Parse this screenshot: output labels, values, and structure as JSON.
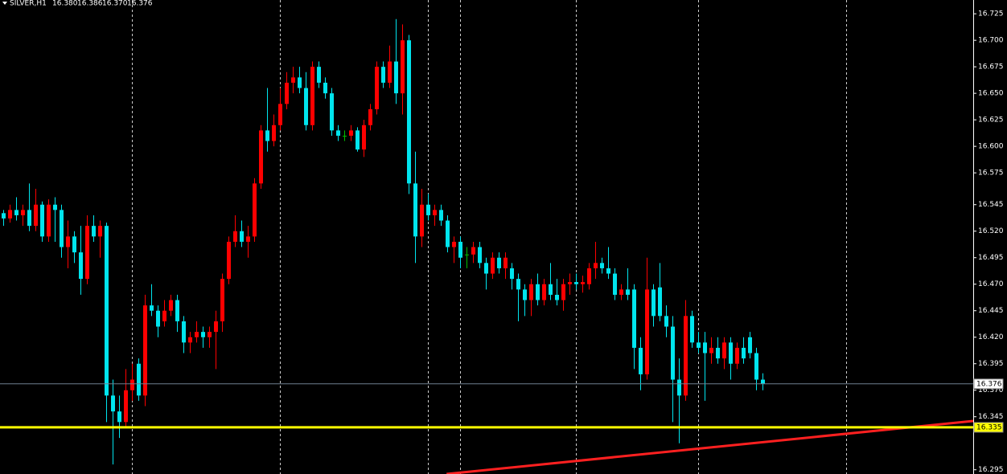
{
  "header": {
    "symbol": "SILVER,H1",
    "open": "16.380",
    "high": "16.386",
    "low": "16.370",
    "close": "16.376"
  },
  "chart_data": {
    "type": "candlestick",
    "up_color": "#ff0000",
    "down_color": "#00e5ee",
    "doji_color": "#00c000",
    "ylim": [
      16.291,
      16.738
    ],
    "yticks": [
      {
        "value": 16.725,
        "label": "16.725"
      },
      {
        "value": 16.7,
        "label": "16.700"
      },
      {
        "value": 16.675,
        "label": "16.675"
      },
      {
        "value": 16.65,
        "label": "16.650"
      },
      {
        "value": 16.625,
        "label": "16.625"
      },
      {
        "value": 16.6,
        "label": "16.600"
      },
      {
        "value": 16.575,
        "label": "16.575"
      },
      {
        "value": 16.545,
        "label": "16.545"
      },
      {
        "value": 16.52,
        "label": "16.520"
      },
      {
        "value": 16.495,
        "label": "16.495"
      },
      {
        "value": 16.47,
        "label": "16.470"
      },
      {
        "value": 16.445,
        "label": "16.445"
      },
      {
        "value": 16.42,
        "label": "16.420"
      },
      {
        "value": 16.395,
        "label": "16.395"
      },
      {
        "value": 16.37,
        "label": "16.370"
      },
      {
        "value": 16.345,
        "label": "16.345"
      },
      {
        "value": 16.295,
        "label": "16.295"
      }
    ],
    "separators": [
      20,
      43,
      66,
      71,
      89,
      108,
      131
    ],
    "hlines": [
      {
        "value": 16.376,
        "color": "#6f8090"
      },
      {
        "value": 16.335,
        "color": "#ffff00"
      }
    ],
    "trendline": {
      "color": "#ff2020",
      "from": [
        68.9,
        16.291
      ],
      "to": [
        150.75,
        16.341
      ]
    },
    "ohlc": [
      [
        16.537,
        16.54,
        16.525,
        16.532
      ],
      [
        16.532,
        16.545,
        16.528,
        16.54
      ],
      [
        16.54,
        16.552,
        16.53,
        16.535
      ],
      [
        16.535,
        16.545,
        16.525,
        16.54
      ],
      [
        16.54,
        16.565,
        16.52,
        16.525
      ],
      [
        16.525,
        16.56,
        16.52,
        16.545
      ],
      [
        16.545,
        16.548,
        16.51,
        16.515
      ],
      [
        16.515,
        16.55,
        16.51,
        16.545
      ],
      [
        16.545,
        16.552,
        16.51,
        16.54
      ],
      [
        16.54,
        16.545,
        16.495,
        16.505
      ],
      [
        16.505,
        16.53,
        16.485,
        16.515
      ],
      [
        16.515,
        16.52,
        16.49,
        16.5
      ],
      [
        16.5,
        16.525,
        16.46,
        16.475
      ],
      [
        16.475,
        16.535,
        16.47,
        16.525
      ],
      [
        16.525,
        16.535,
        16.51,
        16.515
      ],
      [
        16.515,
        16.53,
        16.495,
        16.525
      ],
      [
        16.525,
        16.528,
        16.34,
        16.365
      ],
      [
        16.365,
        16.38,
        16.3,
        16.35
      ],
      [
        16.35,
        16.365,
        16.325,
        16.34
      ],
      [
        16.34,
        16.39,
        16.335,
        16.37
      ],
      [
        16.37,
        16.395,
        16.36,
        16.38
      ],
      [
        16.395,
        16.4,
        16.36,
        16.365
      ],
      [
        16.365,
        16.46,
        16.355,
        16.45
      ],
      [
        16.45,
        16.47,
        16.44,
        16.445
      ],
      [
        16.445,
        16.45,
        16.42,
        16.43
      ],
      [
        16.435,
        16.455,
        16.43,
        16.445
      ],
      [
        16.445,
        16.46,
        16.44,
        16.455
      ],
      [
        16.455,
        16.46,
        16.425,
        16.435
      ],
      [
        16.435,
        16.44,
        16.405,
        16.415
      ],
      [
        16.415,
        16.425,
        16.405,
        16.42
      ],
      [
        16.42,
        16.435,
        16.415,
        16.425
      ],
      [
        16.425,
        16.43,
        16.41,
        16.42
      ],
      [
        16.42,
        16.43,
        16.41,
        16.425
      ],
      [
        16.425,
        16.445,
        16.39,
        16.435
      ],
      [
        16.435,
        16.48,
        16.425,
        16.475
      ],
      [
        16.475,
        16.515,
        16.47,
        16.51
      ],
      [
        16.51,
        16.535,
        16.505,
        16.52
      ],
      [
        16.52,
        16.53,
        16.505,
        16.51
      ],
      [
        16.51,
        16.525,
        16.495,
        16.515
      ],
      [
        16.515,
        16.57,
        16.51,
        16.565
      ],
      [
        16.565,
        16.62,
        16.56,
        16.615
      ],
      [
        16.615,
        16.655,
        16.595,
        16.605
      ],
      [
        16.605,
        16.63,
        16.6,
        16.62
      ],
      [
        16.62,
        16.655,
        16.615,
        16.64
      ],
      [
        16.64,
        16.67,
        16.635,
        16.66
      ],
      [
        16.66,
        16.675,
        16.65,
        16.665
      ],
      [
        16.665,
        16.675,
        16.65,
        16.655
      ],
      [
        16.655,
        16.67,
        16.615,
        16.62
      ],
      [
        16.62,
        16.68,
        16.615,
        16.675
      ],
      [
        16.675,
        16.68,
        16.655,
        16.66
      ],
      [
        16.66,
        16.665,
        16.645,
        16.65
      ],
      [
        16.65,
        16.655,
        16.61,
        16.615
      ],
      [
        16.615,
        16.62,
        16.605,
        16.61
      ],
      [
        16.61,
        16.615,
        16.605,
        16.61
      ],
      [
        16.61,
        16.62,
        16.605,
        16.615
      ],
      [
        16.615,
        16.618,
        16.595,
        16.597
      ],
      [
        16.597,
        16.625,
        16.59,
        16.62
      ],
      [
        16.62,
        16.64,
        16.615,
        16.635
      ],
      [
        16.635,
        16.68,
        16.63,
        16.675
      ],
      [
        16.675,
        16.68,
        16.655,
        16.66
      ],
      [
        16.66,
        16.695,
        16.655,
        16.68
      ],
      [
        16.68,
        16.72,
        16.64,
        16.65
      ],
      [
        16.65,
        16.715,
        16.63,
        16.7
      ],
      [
        16.7,
        16.705,
        16.555,
        16.565
      ],
      [
        16.565,
        16.595,
        16.49,
        16.515
      ],
      [
        16.515,
        16.56,
        16.505,
        16.545
      ],
      [
        16.545,
        16.555,
        16.53,
        16.535
      ],
      [
        16.535,
        16.545,
        16.525,
        16.54
      ],
      [
        16.54,
        16.545,
        16.525,
        16.53
      ],
      [
        16.53,
        16.535,
        16.5,
        16.505
      ],
      [
        16.505,
        16.515,
        16.49,
        16.51
      ],
      [
        16.51,
        16.515,
        16.485,
        16.495
      ],
      [
        16.498,
        16.505,
        16.485,
        16.498
      ],
      [
        16.498,
        16.51,
        16.49,
        16.505
      ],
      [
        16.505,
        16.51,
        16.485,
        16.49
      ],
      [
        16.49,
        16.495,
        16.465,
        16.48
      ],
      [
        16.48,
        16.5,
        16.475,
        16.495
      ],
      [
        16.495,
        16.5,
        16.48,
        16.485
      ],
      [
        16.485,
        16.5,
        16.475,
        16.495
      ],
      [
        16.485,
        16.49,
        16.465,
        16.475
      ],
      [
        16.475,
        16.48,
        16.435,
        16.465
      ],
      [
        16.465,
        16.47,
        16.44,
        16.455
      ],
      [
        16.455,
        16.475,
        16.44,
        16.47
      ],
      [
        16.47,
        16.48,
        16.45,
        16.455
      ],
      [
        16.455,
        16.475,
        16.45,
        16.47
      ],
      [
        16.47,
        16.49,
        16.455,
        16.46
      ],
      [
        16.46,
        16.475,
        16.45,
        16.455
      ],
      [
        16.455,
        16.475,
        16.445,
        16.47
      ],
      [
        16.47,
        16.48,
        16.46,
        16.472
      ],
      [
        16.472,
        16.48,
        16.465,
        16.47
      ],
      [
        16.47,
        16.478,
        16.462,
        16.472
      ],
      [
        16.47,
        16.49,
        16.465,
        16.485
      ],
      [
        16.485,
        16.51,
        16.475,
        16.49
      ],
      [
        16.49,
        16.495,
        16.48,
        16.485
      ],
      [
        16.485,
        16.505,
        16.475,
        16.48
      ],
      [
        16.48,
        16.485,
        16.455,
        16.46
      ],
      [
        16.46,
        16.47,
        16.455,
        16.465
      ],
      [
        16.465,
        16.485,
        16.455,
        16.46
      ],
      [
        16.465,
        16.47,
        16.39,
        16.41
      ],
      [
        16.41,
        16.42,
        16.37,
        16.385
      ],
      [
        16.385,
        16.495,
        16.38,
        16.465
      ],
      [
        16.465,
        16.47,
        16.43,
        16.44
      ],
      [
        16.467,
        16.49,
        16.435,
        16.44
      ],
      [
        16.44,
        16.45,
        16.42,
        16.43
      ],
      [
        16.43,
        16.44,
        16.34,
        16.38
      ],
      [
        16.38,
        16.4,
        16.32,
        16.365
      ],
      [
        16.365,
        16.455,
        16.36,
        16.44
      ],
      [
        16.44,
        16.445,
        16.41,
        16.415
      ],
      [
        16.415,
        16.425,
        16.405,
        16.41
      ],
      [
        16.415,
        16.425,
        16.36,
        16.405
      ],
      [
        16.405,
        16.42,
        16.395,
        16.41
      ],
      [
        16.41,
        16.42,
        16.395,
        16.4
      ],
      [
        16.4,
        16.42,
        16.39,
        16.415
      ],
      [
        16.415,
        16.42,
        16.38,
        16.395
      ],
      [
        16.395,
        16.415,
        16.39,
        16.41
      ],
      [
        16.41,
        16.42,
        16.395,
        16.4
      ],
      [
        16.42,
        16.425,
        16.4,
        16.405
      ],
      [
        16.405,
        16.41,
        16.37,
        16.38
      ],
      [
        16.38,
        16.386,
        16.37,
        16.376
      ]
    ]
  }
}
